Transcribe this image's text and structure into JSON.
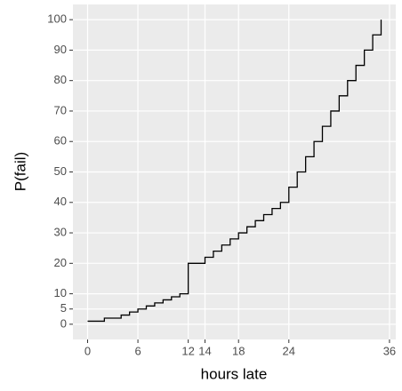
{
  "chart_data": {
    "type": "step",
    "x_label": "hours late",
    "y_label": "P(fail)",
    "x": [
      0,
      1,
      2,
      3,
      4,
      5,
      6,
      7,
      8,
      9,
      10,
      11,
      12,
      13,
      14,
      15,
      16,
      17,
      18,
      19,
      20,
      21,
      22,
      23,
      24,
      25,
      26,
      27,
      28,
      29,
      30,
      31,
      32,
      33,
      34,
      35
    ],
    "values": [
      1,
      1,
      2,
      2,
      3,
      4,
      5,
      6,
      7,
      8,
      9,
      10,
      20,
      20,
      22,
      24,
      26,
      28,
      30,
      32,
      34,
      36,
      38,
      40,
      45,
      50,
      55,
      60,
      65,
      70,
      75,
      80,
      85,
      90,
      95,
      100
    ],
    "color": "#000000",
    "xlim": [
      -1.75,
      36.75
    ],
    "xticks": [
      0,
      6,
      12,
      14,
      18,
      24,
      36
    ],
    "ylim": [
      -5,
      105
    ],
    "yticks": [
      0,
      5,
      10,
      20,
      30,
      40,
      50,
      60,
      70,
      80,
      90,
      100
    ],
    "grid": true
  }
}
